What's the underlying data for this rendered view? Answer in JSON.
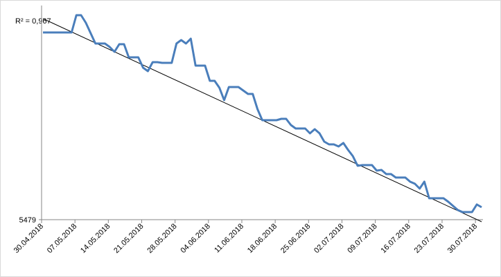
{
  "chart_data": {
    "type": "line",
    "annotation": "R² = 0,967",
    "categories": [
      "30.04.2018",
      null,
      null,
      null,
      null,
      null,
      null,
      "07.05.2018",
      null,
      null,
      null,
      null,
      null,
      null,
      "14.05.2018",
      null,
      null,
      null,
      null,
      null,
      null,
      "21.05.2018",
      null,
      null,
      null,
      null,
      null,
      null,
      "28.05.2018",
      null,
      null,
      null,
      null,
      null,
      null,
      "04.06.2018",
      null,
      null,
      null,
      null,
      null,
      null,
      "11.06.2018",
      null,
      null,
      null,
      null,
      null,
      null,
      "18.06.2018",
      null,
      null,
      null,
      null,
      null,
      null,
      "25.06.2018",
      null,
      null,
      null,
      null,
      null,
      null,
      "02.07.2018",
      null,
      null,
      null,
      null,
      null,
      null,
      "09.07.2018",
      null,
      null,
      null,
      null,
      null,
      null,
      "16.07.2018",
      null,
      null,
      null,
      null,
      null,
      null,
      "23.07.2018",
      null,
      null,
      null,
      null,
      null,
      null,
      "30.07.2018",
      null
    ],
    "series": [
      {
        "color": "#4a7ebb",
        "values": [
          5750,
          5750,
          5750,
          5750,
          5750,
          5750,
          5750,
          5775,
          5775,
          5764,
          5749,
          5734,
          5734,
          5734,
          5729,
          5722,
          5733,
          5733,
          5714,
          5714,
          5714,
          5699,
          5694,
          5707,
          5707,
          5706,
          5706,
          5706,
          5734,
          5739,
          5734,
          5741,
          5702,
          5702,
          5702,
          5680,
          5680,
          5670,
          5652,
          5671,
          5671,
          5671,
          5666,
          5661,
          5661,
          5639,
          5623,
          5623,
          5623,
          5623,
          5625,
          5625,
          5616,
          5611,
          5611,
          5611,
          5604,
          5610,
          5604,
          5592,
          5588,
          5588,
          5585,
          5590,
          5580,
          5571,
          5557,
          5558,
          5558,
          5558,
          5550,
          5551,
          5545,
          5545,
          5540,
          5540,
          5540,
          5534,
          5531,
          5524,
          5534,
          5510,
          5510,
          5510,
          5510,
          5505,
          5499,
          5493,
          5490,
          5490,
          5490,
          5501,
          5497
        ]
      }
    ],
    "trendline": {
      "color": "#000000",
      "start": 5770,
      "end": 5476
    },
    "ylim": [
      5479,
      5789
    ],
    "yticks": [
      5479
    ]
  }
}
